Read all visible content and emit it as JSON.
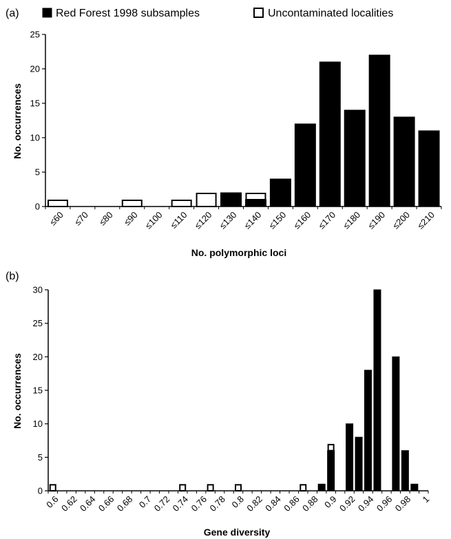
{
  "colors": {
    "red_forest": "#000000",
    "uncontaminated": "#ffffff",
    "outline": "#000000"
  },
  "legend": {
    "red_forest_label": "Red Forest 1998 subsamples",
    "uncontaminated_label": "Uncontaminated localities",
    "placement": "top"
  },
  "chart_data": [
    {
      "panel_label": "(a)",
      "type": "bar",
      "stacked": true,
      "xlabel": "No. polymorphic loci",
      "ylabel": "No. occurrences",
      "ylim": [
        0,
        25
      ],
      "yticks": [
        0,
        5,
        10,
        15,
        20,
        25
      ],
      "categories": [
        "≤60",
        "≤70",
        "≤80",
        "≤90",
        "≤100",
        "≤110",
        "≤120",
        "≤130",
        "≤140",
        "≤150",
        "≤160",
        "≤170",
        "≤180",
        "≤190",
        "≤200",
        "≤210"
      ],
      "series": [
        {
          "name": "Red Forest 1998 subsamples",
          "color": "#000000",
          "values": [
            0,
            0,
            0,
            0,
            0,
            0,
            0,
            2,
            1,
            4,
            12,
            21,
            14,
            22,
            13,
            11
          ]
        },
        {
          "name": "Uncontaminated localities",
          "color": "#ffffff",
          "values": [
            1,
            0,
            0,
            1,
            0,
            1,
            2,
            0,
            1,
            0,
            0,
            0,
            0,
            0,
            0,
            0
          ]
        }
      ]
    },
    {
      "panel_label": "(b)",
      "type": "bar",
      "stacked": true,
      "xlabel": "Gene diversity",
      "ylabel": "No. occurrences",
      "ylim": [
        0,
        30
      ],
      "yticks": [
        0,
        5,
        10,
        15,
        20,
        25,
        30
      ],
      "categories": [
        "0.6",
        "0.61",
        "0.62",
        "0.63",
        "0.64",
        "0.65",
        "0.66",
        "0.67",
        "0.68",
        "0.69",
        "0.7",
        "0.71",
        "0.72",
        "0.73",
        "0.74",
        "0.75",
        "0.76",
        "0.77",
        "0.78",
        "0.79",
        "0.8",
        "0.81",
        "0.82",
        "0.83",
        "0.84",
        "0.85",
        "0.86",
        "0.87",
        "0.88",
        "0.89",
        "0.9",
        "0.91",
        "0.92",
        "0.93",
        "0.94",
        "0.95",
        "0.96",
        "0.97",
        "0.98",
        "0.99",
        "1"
      ],
      "tick_labels": [
        "0.6",
        "0.62",
        "0.64",
        "0.66",
        "0.68",
        "0.7",
        "0.72",
        "0.74",
        "0.76",
        "0.78",
        "0.8",
        "0.82",
        "0.84",
        "0.86",
        "0.88",
        "0.9",
        "0.92",
        "0.94",
        "0.96",
        "0.98",
        "1"
      ],
      "series": [
        {
          "name": "Red Forest 1998 subsamples",
          "color": "#000000",
          "values": [
            0,
            0,
            0,
            0,
            0,
            0,
            0,
            0,
            0,
            0,
            0,
            0,
            0,
            0,
            0,
            0,
            0,
            0,
            0,
            0,
            0,
            0,
            0,
            0,
            0,
            0,
            0,
            0,
            0,
            1,
            6,
            0,
            10,
            8,
            18,
            30,
            0,
            20,
            6,
            1,
            0
          ]
        },
        {
          "name": "Uncontaminated localities",
          "color": "#ffffff",
          "values": [
            1,
            0,
            0,
            0,
            0,
            0,
            0,
            0,
            0,
            0,
            0,
            0,
            0,
            0,
            1,
            0,
            0,
            1,
            0,
            0,
            1,
            0,
            0,
            0,
            0,
            0,
            0,
            1,
            0,
            0,
            1,
            0,
            0,
            0,
            0,
            0,
            0,
            0,
            0,
            0,
            0
          ]
        }
      ]
    }
  ]
}
